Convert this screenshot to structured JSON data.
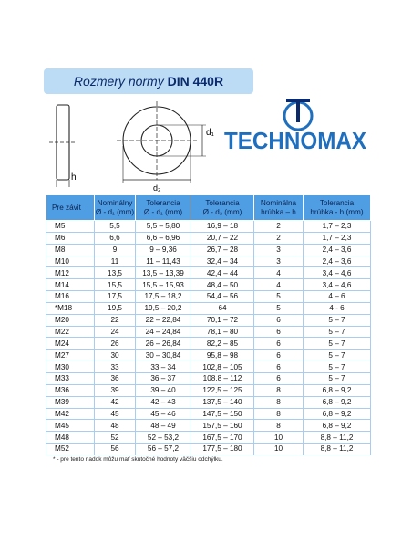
{
  "title": {
    "italic": "Rozmery normy",
    "bold": "DIN 440R"
  },
  "drawing": {
    "d1": "d₁",
    "d2": "d₂",
    "h": "h"
  },
  "logo": {
    "name": "TECHNOMAX"
  },
  "table": {
    "header": [
      [
        "Pre závit"
      ],
      [
        "Nominálny",
        "Ø - d₁ (mm)"
      ],
      [
        "Tolerancia",
        "Ø - d₁ (mm)"
      ],
      [
        "Tolerancia",
        "Ø - d₂ (mm)"
      ],
      [
        "Nominálna",
        "hrúbka – h"
      ],
      [
        "Tolerancia",
        "hrúbka - h (mm)"
      ]
    ],
    "rows": [
      [
        "M5",
        "5,5",
        "5,5 – 5,80",
        "16,9 – 18",
        "2",
        "1,7 – 2,3"
      ],
      [
        "M6",
        "6,6",
        "6,6 – 6,96",
        "20,7 – 22",
        "2",
        "1,7 – 2,3"
      ],
      [
        "M8",
        "9",
        "9 – 9,36",
        "26,7 – 28",
        "3",
        "2,4 – 3,6"
      ],
      [
        "M10",
        "11",
        "11 – 11,43",
        "32,4 – 34",
        "3",
        "2,4 – 3,6"
      ],
      [
        "M12",
        "13,5",
        "13,5 – 13,39",
        "42,4 – 44",
        "4",
        "3,4 – 4,6"
      ],
      [
        "M14",
        "15,5",
        "15,5 – 15,93",
        "48,4 – 50",
        "4",
        "3,4 – 4,6"
      ],
      [
        "M16",
        "17,5",
        "17,5 – 18,2",
        "54,4 – 56",
        "5",
        "4 – 6"
      ],
      [
        "*M18",
        "19,5",
        "19,5 – 20,2",
        "64",
        "5",
        "4 - 6"
      ],
      [
        "M20",
        "22",
        "22 – 22,84",
        "70,1 – 72",
        "6",
        "5 – 7"
      ],
      [
        "M22",
        "24",
        "24 – 24,84",
        "78,1 – 80",
        "6",
        "5 – 7"
      ],
      [
        "M24",
        "26",
        "26 – 26,84",
        "82,2 – 85",
        "6",
        "5 – 7"
      ],
      [
        "M27",
        "30",
        "30 – 30,84",
        "95,8 – 98",
        "6",
        "5 – 7"
      ],
      [
        "M30",
        "33",
        "33 – 34",
        "102,8 – 105",
        "6",
        "5 – 7"
      ],
      [
        "M33",
        "36",
        "36 – 37",
        "108,8 – 112",
        "6",
        "5 – 7"
      ],
      [
        "M36",
        "39",
        "39 – 40",
        "122,5 – 125",
        "8",
        "6,8 – 9,2"
      ],
      [
        "M39",
        "42",
        "42 – 43",
        "137,5 – 140",
        "8",
        "6,8 – 9,2"
      ],
      [
        "M42",
        "45",
        "45 – 46",
        "147,5 – 150",
        "8",
        "6,8 – 9,2"
      ],
      [
        "M45",
        "48",
        "48 – 49",
        "157,5 – 160",
        "8",
        "6,8 – 9,2"
      ],
      [
        "M48",
        "52",
        "52 – 53,2",
        "167,5 – 170",
        "10",
        "8,8 – 11,2"
      ],
      [
        "M52",
        "56",
        "56 – 57,2",
        "177,5 – 180",
        "10",
        "8,8 – 11,2"
      ]
    ]
  },
  "footnote": "* - pre tento riadok môžu mať skutočné hodnoty väčšiu odchýlku."
}
